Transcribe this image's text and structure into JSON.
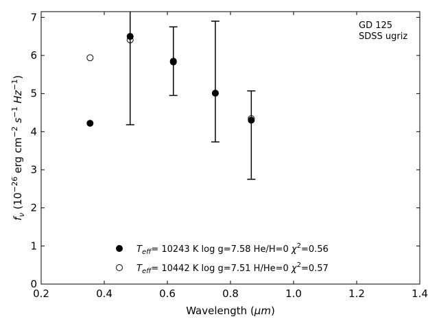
{
  "chart_data": {
    "type": "scatter",
    "xlabel": {
      "main": "Wavelength (",
      "unit": "μm",
      "close": ")"
    },
    "ylabel": {
      "prefix": "f",
      "sub": "ν",
      "rest_a": " (10",
      "exp1": "−26",
      "rest_b": " erg cm",
      "exp2": "−2",
      "rest_c": " s",
      "exp3": "−1",
      "rest_d": " Hz",
      "exp4": "−1",
      "rest_e": ")"
    },
    "xlim": [
      0.2,
      1.4
    ],
    "ylim": [
      0,
      7.15
    ],
    "x_ticks": [
      {
        "value": 0.2,
        "label": "0.2"
      },
      {
        "value": 0.4,
        "label": "0.4"
      },
      {
        "value": 0.6,
        "label": "0.6"
      },
      {
        "value": 0.8,
        "label": "0.8"
      },
      {
        "value": 1.0,
        "label": "1.0"
      },
      {
        "value": 1.2,
        "label": "1.2"
      },
      {
        "value": 1.4,
        "label": "1.4"
      }
    ],
    "y_ticks": [
      {
        "value": 0,
        "label": "0"
      },
      {
        "value": 1,
        "label": "1"
      },
      {
        "value": 2,
        "label": "2"
      },
      {
        "value": 3,
        "label": "3"
      },
      {
        "value": 4,
        "label": "4"
      },
      {
        "value": 5,
        "label": "5"
      },
      {
        "value": 6,
        "label": "6"
      },
      {
        "value": 7,
        "label": "7"
      }
    ],
    "annotation": [
      "GD 125",
      "SDSS ugriz"
    ],
    "observed": [
      {
        "x": 0.482,
        "y": 6.45,
        "err_low": 4.18,
        "err_high": 8.72
      },
      {
        "x": 0.619,
        "y": 5.85,
        "err_low": 4.95,
        "err_high": 6.75
      },
      {
        "x": 0.752,
        "y": 5.0,
        "err_low": 3.73,
        "err_high": 6.9
      },
      {
        "x": 0.866,
        "y": 4.3,
        "err_low": 2.75,
        "err_high": 5.07
      }
    ],
    "series": [
      {
        "marker": "filled-circle",
        "legend": {
          "t": "T",
          "sub": "eff",
          "rest": "= 10243 K  log g=7.58  He/H=0  ",
          "chi": "χ",
          "sup": "2",
          "val": "=0.56"
        },
        "points": [
          {
            "x": 0.355,
            "y": 4.22
          },
          {
            "x": 0.482,
            "y": 6.5
          },
          {
            "x": 0.619,
            "y": 5.83
          },
          {
            "x": 0.752,
            "y": 5.01
          },
          {
            "x": 0.866,
            "y": 4.3
          }
        ]
      },
      {
        "marker": "open-circle",
        "legend": {
          "t": "T",
          "sub": "eff",
          "rest": "= 10442 K  log g=7.51  H/He=0  ",
          "chi": "χ",
          "sup": "2",
          "val": "=0.57"
        },
        "points": [
          {
            "x": 0.355,
            "y": 5.94
          },
          {
            "x": 0.482,
            "y": 6.41
          },
          {
            "x": 0.619,
            "y": 5.85
          },
          {
            "x": 0.752,
            "y": 5.01
          },
          {
            "x": 0.866,
            "y": 4.34
          }
        ]
      }
    ]
  }
}
